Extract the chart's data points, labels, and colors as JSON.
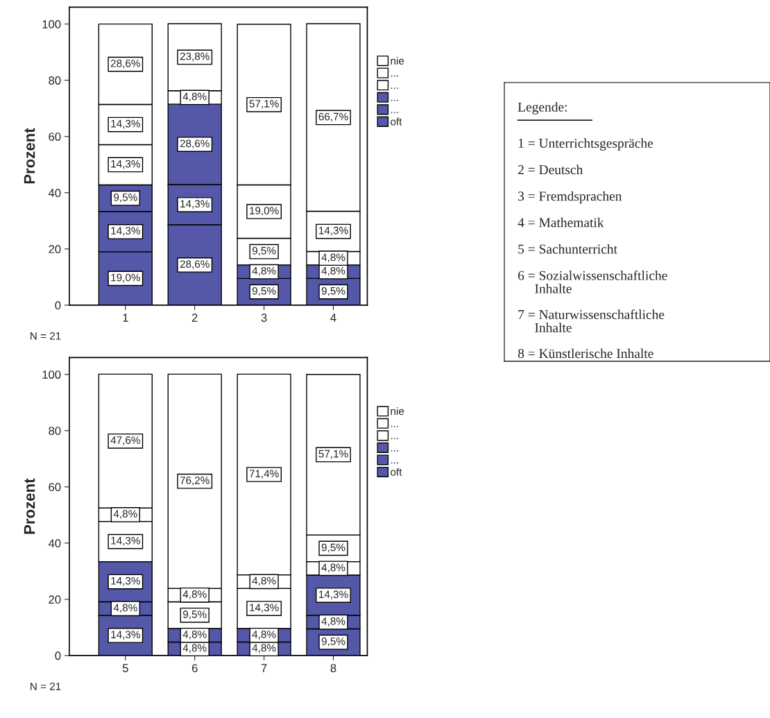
{
  "chart_data": [
    {
      "type": "bar",
      "stacked": true,
      "ylabel": "Prozent",
      "categories": [
        "1",
        "2",
        "3",
        "4"
      ],
      "ylim": [
        0,
        106
      ],
      "yticks": [
        0,
        20,
        40,
        60,
        80,
        100
      ],
      "legend": "right",
      "grid": false,
      "annotations": [
        "N = 21"
      ],
      "series": [
        {
          "name": "oft",
          "color": "#5558a8",
          "values": [
            19.0,
            28.6,
            9.5,
            9.5
          ],
          "value_labels": [
            "19,0%",
            "28,6%",
            "9,5%",
            "9,5%"
          ]
        },
        {
          "name": "...",
          "color": "#5558a8",
          "values": [
            14.3,
            14.3,
            4.8,
            4.8
          ],
          "value_labels": [
            "14,3%",
            "14,3%",
            "4,8%",
            "4,8%"
          ]
        },
        {
          "name": "...",
          "color": "#5558a8",
          "values": [
            9.5,
            28.6,
            null,
            null
          ],
          "value_labels": [
            "9,5%",
            "28,6%",
            null,
            null
          ]
        },
        {
          "name": "...",
          "color": "#ffffff",
          "values": [
            14.3,
            4.8,
            9.5,
            4.8
          ],
          "value_labels": [
            "14,3%",
            "4,8%",
            "9,5%",
            "4,8%"
          ]
        },
        {
          "name": "...",
          "color": "#ffffff",
          "values": [
            14.3,
            null,
            19.0,
            14.3
          ],
          "value_labels": [
            "14,3%",
            null,
            "19,0%",
            "14,3%"
          ]
        },
        {
          "name": "nie",
          "color": "#ffffff",
          "values": [
            28.6,
            23.8,
            57.1,
            66.7
          ],
          "value_labels": [
            "28,6%",
            "23,8%",
            "57,1%",
            "66,7%"
          ]
        }
      ]
    },
    {
      "type": "bar",
      "stacked": true,
      "ylabel": "Prozent",
      "categories": [
        "5",
        "6",
        "7",
        "8"
      ],
      "ylim": [
        0,
        106
      ],
      "yticks": [
        0,
        20,
        40,
        60,
        80,
        100
      ],
      "legend": "right",
      "grid": false,
      "annotations": [
        "N = 21"
      ],
      "series": [
        {
          "name": "oft",
          "color": "#5558a8",
          "values": [
            14.3,
            4.8,
            4.8,
            9.5
          ],
          "value_labels": [
            "14,3%",
            "4,8%",
            "4,8%",
            "9,5%"
          ]
        },
        {
          "name": "...",
          "color": "#5558a8",
          "values": [
            4.8,
            4.8,
            4.8,
            4.8
          ],
          "value_labels": [
            "4,8%",
            "4,8%",
            "4,8%",
            "4,8%"
          ]
        },
        {
          "name": "...",
          "color": "#5558a8",
          "values": [
            14.3,
            null,
            null,
            14.3
          ],
          "value_labels": [
            "14,3%",
            null,
            null,
            "14,3%"
          ]
        },
        {
          "name": "...",
          "color": "#ffffff",
          "values": [
            14.3,
            9.5,
            14.3,
            4.8
          ],
          "value_labels": [
            "14,3%",
            "9,5%",
            "14,3%",
            "4,8%"
          ]
        },
        {
          "name": "...",
          "color": "#ffffff",
          "values": [
            4.8,
            4.8,
            4.8,
            9.5
          ],
          "value_labels": [
            "4,8%",
            "4,8%",
            "4,8%",
            "9,5%"
          ]
        },
        {
          "name": "nie",
          "color": "#ffffff",
          "values": [
            47.6,
            76.2,
            71.4,
            57.1
          ],
          "value_labels": [
            "47,6%",
            "76,2%",
            "71,4%",
            "57,1%"
          ]
        }
      ]
    },
    {
      "type": "other",
      "title": "Legende:",
      "annotations": [
        "1 = Unterrichtsgespräche",
        "2 = Deutsch",
        "3 = Fremdsprachen",
        "4 = Mathematik",
        "5 = Sachunterricht",
        "6 = Sozialwissenschaftliche\n     Inhalte",
        "7 = Naturwissenschaftliche\n     Inhalte",
        "8 = Künstlerische Inhalte"
      ]
    }
  ]
}
